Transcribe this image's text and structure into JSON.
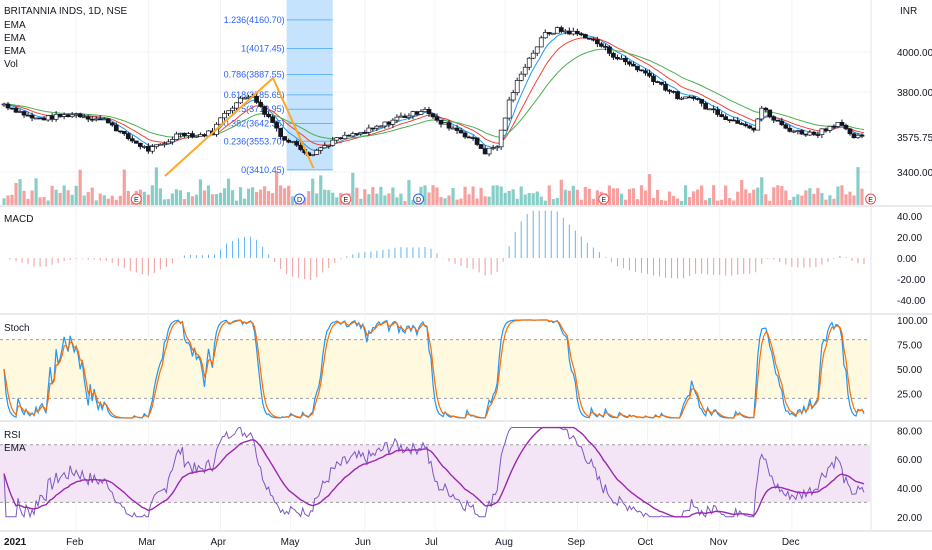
{
  "chart_data": {
    "type": "candlestick",
    "symbol": "BRITANNIA INDS, 1D, NSE",
    "currency_label": "INR",
    "overlay_labels": [
      "EMA",
      "EMA",
      "EMA",
      "Vol"
    ],
    "last_price": "3575.75",
    "price_axis": {
      "ticks": [
        "4000.00",
        "3800.00",
        "3400.00"
      ],
      "range": [
        3300,
        4200
      ]
    },
    "x_axis": {
      "labels": [
        "2021",
        "Feb",
        "Mar",
        "Apr",
        "May",
        "Jun",
        "Jul",
        "Aug",
        "Sep",
        "Oct",
        "Nov",
        "Dec"
      ]
    },
    "close_anchors": [
      [
        0,
        3740
      ],
      [
        8,
        3700
      ],
      [
        15,
        3665
      ],
      [
        22,
        3670
      ],
      [
        28,
        3680
      ],
      [
        36,
        3690
      ],
      [
        44,
        3670
      ],
      [
        52,
        3655
      ],
      [
        60,
        3580
      ],
      [
        66,
        3545
      ],
      [
        72,
        3510
      ],
      [
        80,
        3540
      ],
      [
        88,
        3600
      ],
      [
        96,
        3580
      ],
      [
        104,
        3600
      ],
      [
        110,
        3700
      ],
      [
        118,
        3760
      ],
      [
        124,
        3790
      ],
      [
        128,
        3720
      ],
      [
        134,
        3650
      ],
      [
        140,
        3560
      ],
      [
        146,
        3540
      ],
      [
        152,
        3490
      ],
      [
        158,
        3520
      ],
      [
        164,
        3555
      ],
      [
        172,
        3580
      ],
      [
        180,
        3600
      ],
      [
        188,
        3630
      ],
      [
        196,
        3670
      ],
      [
        204,
        3690
      ],
      [
        210,
        3720
      ],
      [
        216,
        3650
      ],
      [
        222,
        3630
      ],
      [
        228,
        3600
      ],
      [
        234,
        3560
      ],
      [
        240,
        3500
      ],
      [
        246,
        3530
      ],
      [
        252,
        3750
      ],
      [
        258,
        3900
      ],
      [
        264,
        4000
      ],
      [
        270,
        4090
      ],
      [
        276,
        4110
      ],
      [
        282,
        4100
      ],
      [
        290,
        4080
      ],
      [
        298,
        4030
      ],
      [
        306,
        3970
      ],
      [
        314,
        3930
      ],
      [
        322,
        3880
      ],
      [
        330,
        3820
      ],
      [
        338,
        3760
      ],
      [
        344,
        3780
      ],
      [
        350,
        3720
      ],
      [
        356,
        3700
      ],
      [
        362,
        3660
      ],
      [
        368,
        3650
      ],
      [
        374,
        3620
      ],
      [
        378,
        3720
      ],
      [
        384,
        3660
      ],
      [
        390,
        3620
      ],
      [
        396,
        3600
      ],
      [
        404,
        3590
      ],
      [
        410,
        3620
      ],
      [
        416,
        3650
      ],
      [
        422,
        3580
      ],
      [
        428,
        3570
      ]
    ],
    "volume_scale": 82000,
    "indicator_markers": [
      {
        "label": "E",
        "index": 60
      },
      {
        "label": "D",
        "index": 134
      },
      {
        "label": "E",
        "index": 155
      },
      {
        "label": "D",
        "index": 188
      },
      {
        "label": "E",
        "index": 272
      },
      {
        "label": "E",
        "index": 393
      }
    ],
    "fibonacci": {
      "levels": [
        {
          "label": "1.236(4160.70)",
          "value": 4160.7
        },
        {
          "label": "1(4017.45)",
          "value": 4017.45
        },
        {
          "label": "0.786(3887.55)",
          "value": 3887.55
        },
        {
          "label": "0.618(3785.65)",
          "value": 3785.65
        },
        {
          "label": "0.5(3713.95)",
          "value": 3713.95
        },
        {
          "label": "0.382(3642.35)",
          "value": 3642.35
        },
        {
          "label": "0.236(3553.70)",
          "value": 3553.7
        },
        {
          "label": "0(3410.45)",
          "value": 3410.45
        }
      ]
    },
    "macd": {
      "label": "MACD",
      "ticks": [
        "40.00",
        "20.00",
        "0.00",
        "-20.00",
        "-40.00"
      ],
      "range": [
        -45,
        45
      ]
    },
    "stoch": {
      "label": "Stoch",
      "ticks": [
        "100.00",
        "75.00",
        "50.00",
        "25.00"
      ],
      "band": [
        20,
        80
      ],
      "range": [
        0,
        100
      ]
    },
    "rsi": {
      "label": "RSI",
      "sublabel": "EMA",
      "ticks": [
        "80.00",
        "60.00",
        "40.00",
        "20.00"
      ],
      "band": [
        30,
        70
      ],
      "range": [
        15,
        85
      ]
    }
  }
}
